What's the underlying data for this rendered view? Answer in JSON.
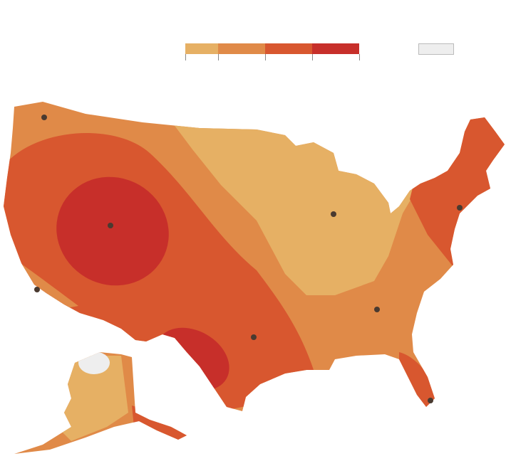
{
  "legend": {
    "colors": [
      "#e6b064",
      "#e08a48",
      "#d8572f",
      "#c72f2a"
    ],
    "no_data_color": "#eeeeee"
  }
}
